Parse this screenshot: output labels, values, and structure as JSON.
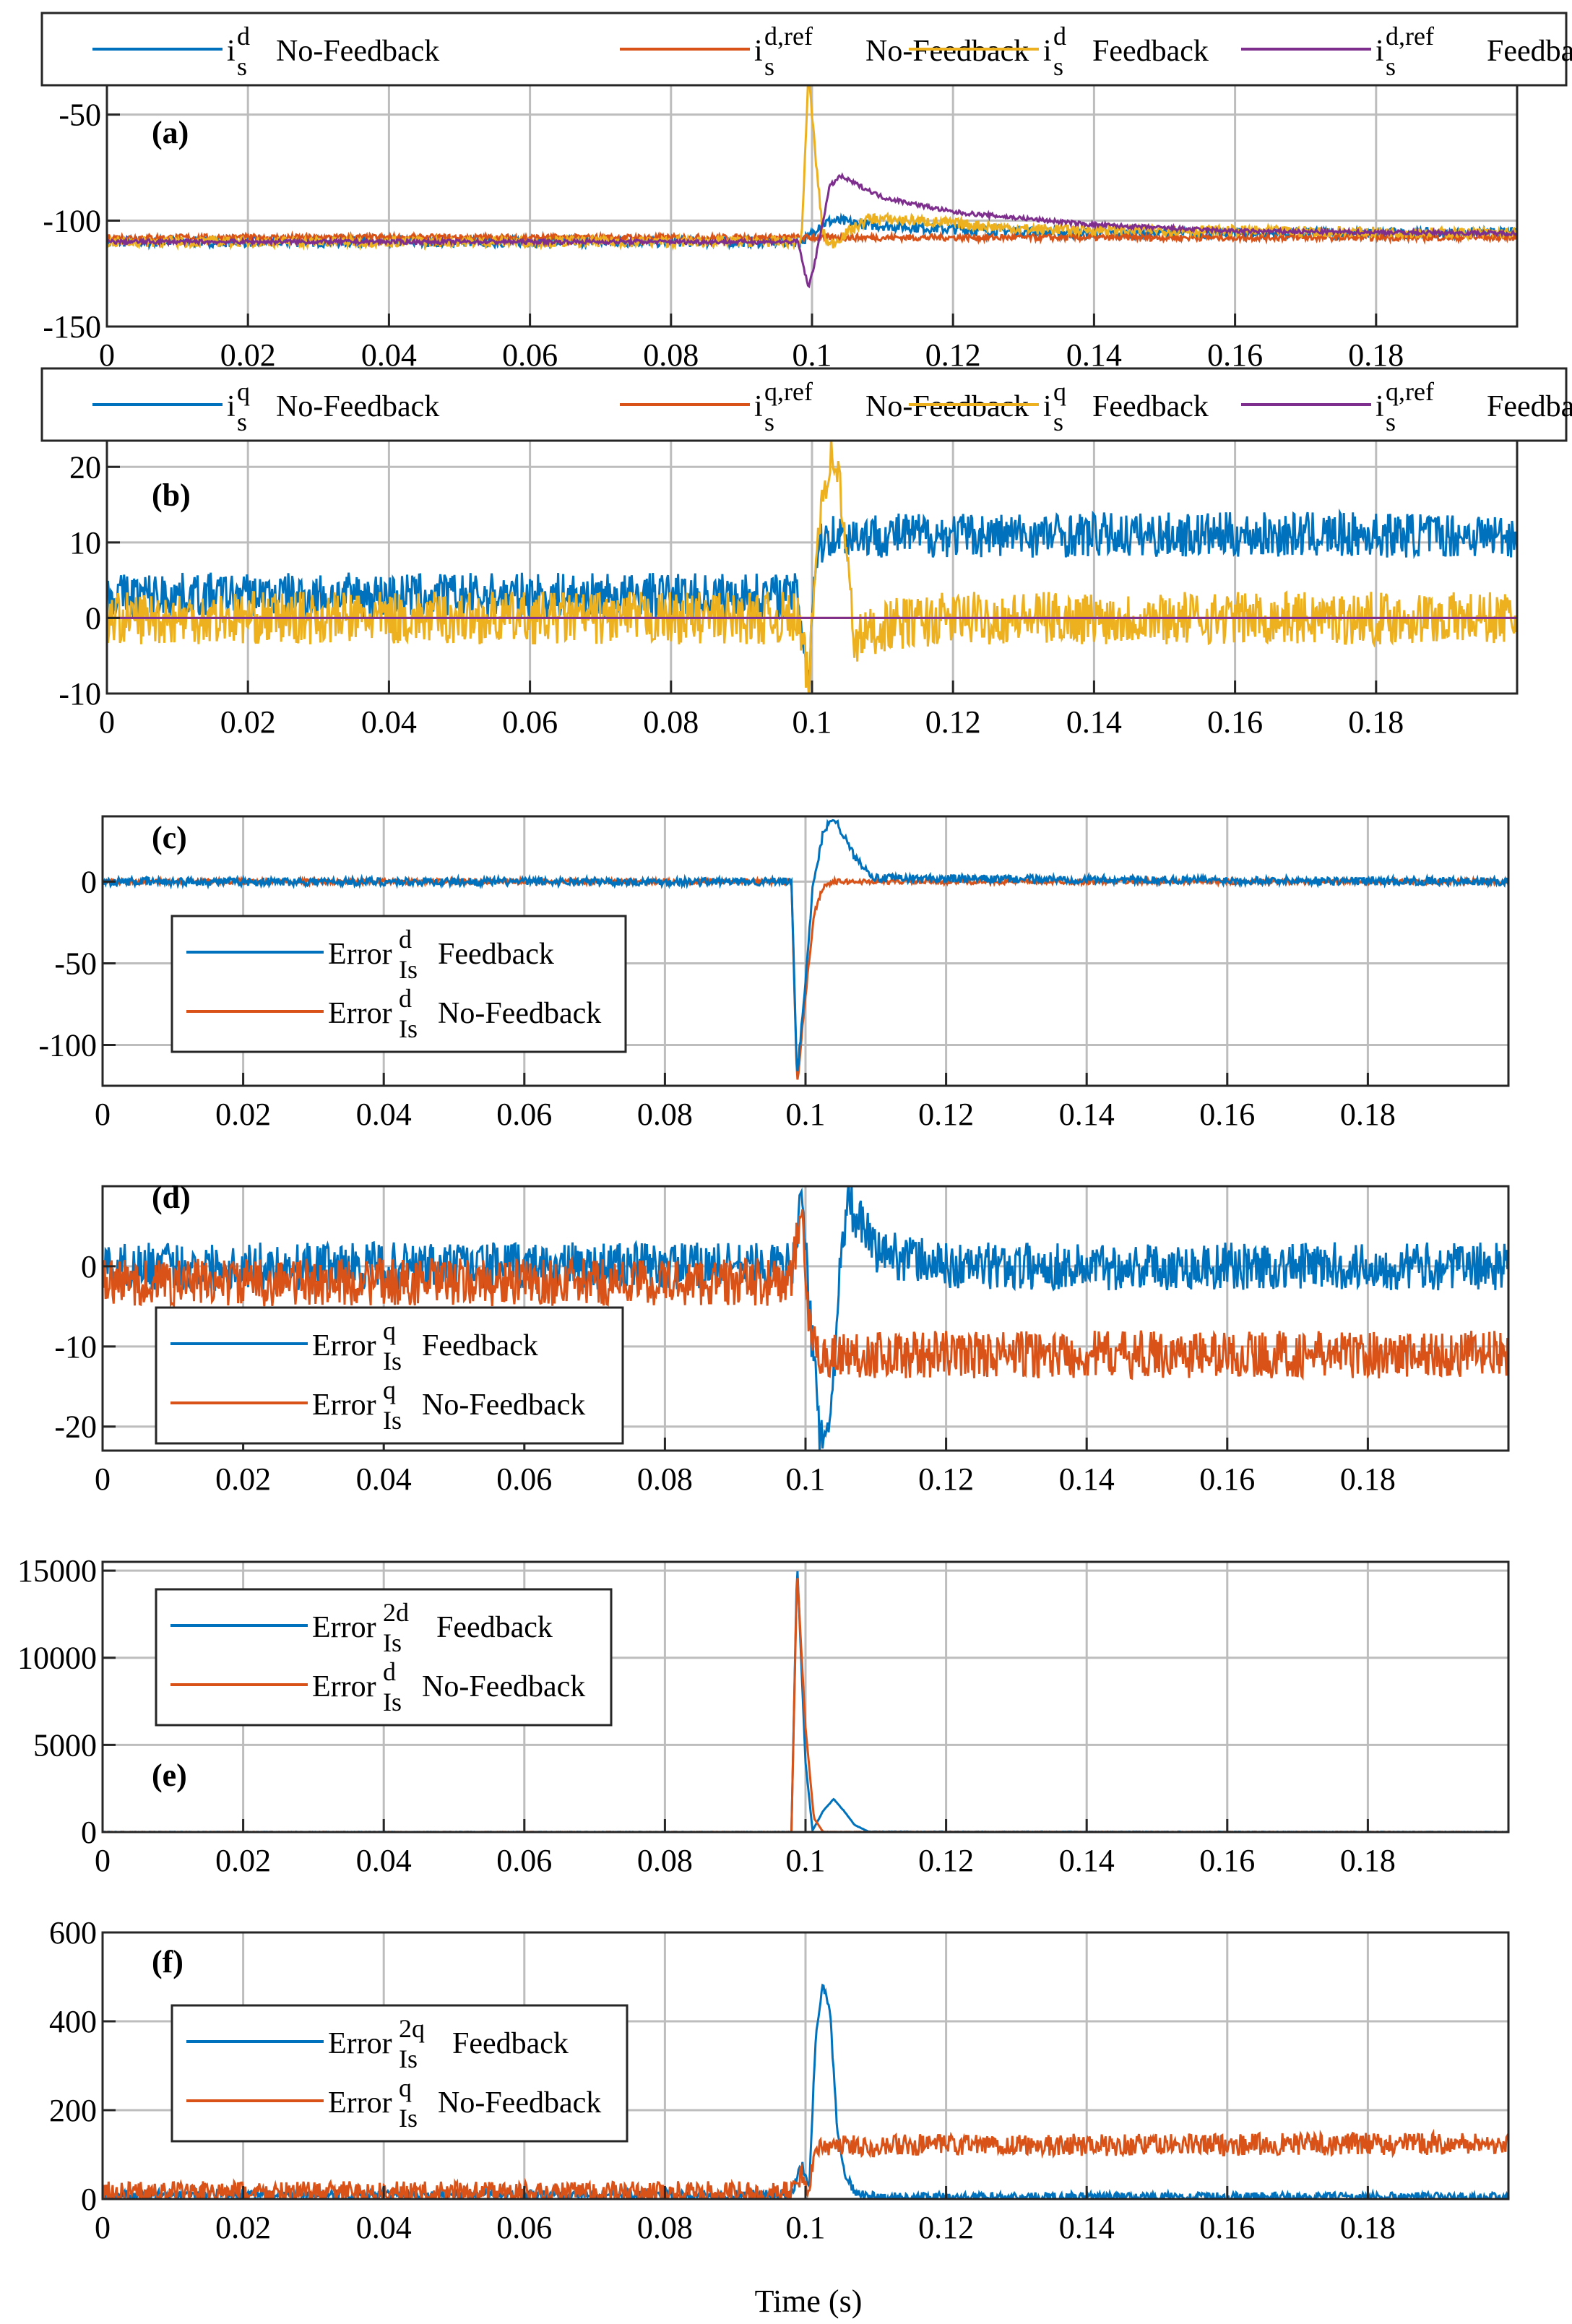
{
  "xlabel": "Time (s)",
  "colors": {
    "blue": "#0072BD",
    "orange": "#D95319",
    "yellow": "#EDB120",
    "purple": "#7E2F8E",
    "grid": "#bdbdbd"
  },
  "chart_data": [
    {
      "type": "line",
      "panel_label": "(a)",
      "xlim": [
        0,
        0.2
      ],
      "ylim": [
        -150,
        -30
      ],
      "xticks": [
        "0",
        "0.02",
        "0.04",
        "0.06",
        "0.08",
        "0.1",
        "0.12",
        "0.14",
        "0.16",
        "0.18"
      ],
      "xtick_values": [
        0,
        0.02,
        0.04,
        0.06,
        0.08,
        0.1,
        0.12,
        0.14,
        0.16,
        0.18
      ],
      "yticks": [
        "-50",
        "-100",
        "-150"
      ],
      "ytick_values": [
        -50,
        -100,
        -150
      ],
      "legend_style": "top",
      "legend": [
        {
          "base": "i",
          "sup": "d",
          "sub": "s",
          "text": "No-Feedback",
          "color": "blue"
        },
        {
          "base": "i",
          "sup": "d,ref",
          "sub": "s",
          "text": "No-Feedback",
          "color": "orange"
        },
        {
          "base": "i",
          "sup": "d",
          "sub": "s",
          "text": "Feedback",
          "color": "yellow"
        },
        {
          "base": "i",
          "sup": "d,ref",
          "sub": "s",
          "text": "Feedback",
          "color": "purple"
        }
      ],
      "series": [
        {
          "name": "i_s^d No-Feedback",
          "color": "blue",
          "x": [
            0,
            0.098,
            0.0995,
            0.101,
            0.103,
            0.108,
            0.12,
            0.14,
            0.2
          ],
          "y": [
            -110,
            -110,
            -108,
            -102,
            -100,
            -102,
            -104,
            -106,
            -106
          ],
          "noise": 2.5
        },
        {
          "name": "i_s^d,ref No-Feedback",
          "color": "orange",
          "x": [
            0,
            0.2
          ],
          "y": [
            -108,
            -108
          ],
          "noise": 1.5
        },
        {
          "name": "i_s^d Feedback",
          "color": "yellow",
          "x": [
            0,
            0.0985,
            0.0995,
            0.1005,
            0.1015,
            0.1025,
            0.104,
            0.108,
            0.115,
            0.13,
            0.2
          ],
          "y": [
            -110,
            -110,
            -30,
            -70,
            -105,
            -112,
            -108,
            -99,
            -100,
            -104,
            -106
          ],
          "noise": 2.5
        },
        {
          "name": "i_s^d,ref Feedback",
          "color": "purple",
          "x": [
            0,
            0.098,
            0.0995,
            0.1005,
            0.1025,
            0.104,
            0.11,
            0.12,
            0.14,
            0.16,
            0.2
          ],
          "y": [
            -110,
            -110,
            -132,
            -118,
            -84,
            -79,
            -89,
            -96,
            -102,
            -105,
            -106
          ],
          "noise": 1
        }
      ]
    },
    {
      "type": "line",
      "panel_label": "(b)",
      "xlim": [
        0,
        0.2
      ],
      "ylim": [
        -10,
        25
      ],
      "xticks": [
        "0",
        "0.02",
        "0.04",
        "0.06",
        "0.08",
        "0.1",
        "0.12",
        "0.14",
        "0.16",
        "0.18"
      ],
      "xtick_values": [
        0,
        0.02,
        0.04,
        0.06,
        0.08,
        0.1,
        0.12,
        0.14,
        0.16,
        0.18
      ],
      "yticks": [
        "20",
        "10",
        "0",
        "-10"
      ],
      "ytick_values": [
        20,
        10,
        0,
        -10
      ],
      "legend_style": "top",
      "legend": [
        {
          "base": "i",
          "sup": "q",
          "sub": "s",
          "text": "No-Feedback",
          "color": "blue"
        },
        {
          "base": "i",
          "sup": "q,ref",
          "sub": "s",
          "text": "No-Feedback",
          "color": "orange"
        },
        {
          "base": "i",
          "sup": "q",
          "sub": "s",
          "text": "Feedback",
          "color": "yellow"
        },
        {
          "base": "i",
          "sup": "q,ref",
          "sub": "s",
          "text": "Feedback",
          "color": "purple"
        }
      ],
      "series": [
        {
          "name": "i_s^q No-Feedback",
          "color": "blue",
          "x": [
            0,
            0.098,
            0.0995,
            0.1005,
            0.102,
            0.2
          ],
          "y": [
            3,
            3,
            -8,
            8,
            11,
            11
          ],
          "noise": 3
        },
        {
          "name": "i_s^q,ref No-Feedback",
          "color": "orange",
          "x": [
            0,
            0.2
          ],
          "y": [
            0,
            0
          ],
          "noise": 0
        },
        {
          "name": "i_s^q Feedback",
          "color": "yellow",
          "x": [
            0,
            0.098,
            0.0995,
            0.101,
            0.1025,
            0.1035,
            0.1045,
            0.106,
            0.11,
            0.12,
            0.2
          ],
          "y": [
            0,
            0,
            -9,
            14,
            21,
            21,
            12,
            -3,
            -1,
            0,
            0
          ],
          "noise": 3.5
        },
        {
          "name": "i_s^q,ref Feedback",
          "color": "purple",
          "x": [
            0,
            0.2
          ],
          "y": [
            0,
            0
          ],
          "noise": 0
        }
      ]
    },
    {
      "type": "line",
      "panel_label": "(c)",
      "xlim": [
        0,
        0.2
      ],
      "ylim": [
        -125,
        40
      ],
      "xticks": [
        "0",
        "0.02",
        "0.04",
        "0.06",
        "0.08",
        "0.1",
        "0.12",
        "0.14",
        "0.16",
        "0.18"
      ],
      "xtick_values": [
        0,
        0.02,
        0.04,
        0.06,
        0.08,
        0.1,
        0.12,
        0.14,
        0.16,
        0.18
      ],
      "yticks": [
        "0",
        "-50",
        "-100"
      ],
      "ytick_values": [
        0,
        -50,
        -100
      ],
      "legend_style": "inset",
      "legend": [
        {
          "base": "Error",
          "sup": "d",
          "sub": "Is",
          "text": "Feedback",
          "color": "blue"
        },
        {
          "base": "Error",
          "sup": "d",
          "sub": "Is",
          "text": "No-Feedback",
          "color": "orange"
        }
      ],
      "series": [
        {
          "name": "Error_Is^d No-Feedback",
          "color": "orange",
          "x": [
            0,
            0.098,
            0.0988,
            0.1,
            0.1012,
            0.1025,
            0.104,
            0.2
          ],
          "y": [
            0,
            0,
            -125,
            -70,
            -20,
            -3,
            0,
            0
          ],
          "noise": 1.5
        },
        {
          "name": "Error_Is^d Feedback",
          "color": "blue",
          "x": [
            0,
            0.098,
            0.0988,
            0.1,
            0.101,
            0.1025,
            0.104,
            0.107,
            0.11,
            0.2
          ],
          "y": [
            0,
            0,
            -120,
            -60,
            -5,
            30,
            40,
            15,
            2,
            0
          ],
          "noise": 2.5
        }
      ]
    },
    {
      "type": "line",
      "panel_label": "(d)",
      "xlim": [
        0,
        0.2
      ],
      "ylim": [
        -23,
        10
      ],
      "xticks": [
        "0",
        "0.02",
        "0.04",
        "0.06",
        "0.08",
        "0.1",
        "0.12",
        "0.14",
        "0.16",
        "0.18"
      ],
      "xtick_values": [
        0,
        0.02,
        0.04,
        0.06,
        0.08,
        0.1,
        0.12,
        0.14,
        0.16,
        0.18
      ],
      "yticks": [
        "0",
        "-10",
        "-20"
      ],
      "ytick_values": [
        0,
        -10,
        -20
      ],
      "legend_style": "inset",
      "legend": [
        {
          "base": "Error",
          "sup": "q",
          "sub": "Is",
          "text": "Feedback",
          "color": "blue"
        },
        {
          "base": "Error",
          "sup": "q",
          "sub": "Is",
          "text": "No-Feedback",
          "color": "orange"
        }
      ],
      "series": [
        {
          "name": "Error_Is^q Feedback",
          "color": "blue",
          "x": [
            0,
            0.098,
            0.0995,
            0.1005,
            0.102,
            0.1035,
            0.1045,
            0.106,
            0.11,
            0.12,
            0.2
          ],
          "y": [
            0,
            0,
            9,
            -5,
            -20,
            -21,
            -5,
            8,
            2,
            0,
            0
          ],
          "noise": 3
        },
        {
          "name": "Error_Is^q No-Feedback",
          "color": "orange",
          "x": [
            0,
            0.098,
            0.0995,
            0.1005,
            0.1015,
            0.2
          ],
          "y": [
            -2,
            -2,
            8,
            -8,
            -11,
            -11
          ],
          "noise": 3
        }
      ]
    },
    {
      "type": "line",
      "panel_label": "(e)",
      "xlim": [
        0,
        0.2
      ],
      "ylim": [
        0,
        15500
      ],
      "xticks": [
        "0",
        "0.02",
        "0.04",
        "0.06",
        "0.08",
        "0.1",
        "0.12",
        "0.14",
        "0.16",
        "0.18"
      ],
      "xtick_values": [
        0,
        0.02,
        0.04,
        0.06,
        0.08,
        0.1,
        0.12,
        0.14,
        0.16,
        0.18
      ],
      "yticks": [
        "15000",
        "10000",
        "5000",
        "0"
      ],
      "ytick_values": [
        15000,
        10000,
        5000,
        0
      ],
      "legend_style": "inset",
      "legend": [
        {
          "base": "Error",
          "sup": "2d",
          "sub": "Is",
          "text": "Feedback",
          "color": "blue"
        },
        {
          "base": "Error",
          "sup": "d",
          "sub": "Is",
          "text": "No-Feedback",
          "color": "orange"
        }
      ],
      "series": [
        {
          "name": "Error^2d_Is Feedback",
          "color": "blue",
          "x": [
            0,
            0.098,
            0.0988,
            0.1,
            0.101,
            0.1025,
            0.104,
            0.1055,
            0.107,
            0.109,
            0.2
          ],
          "y": [
            0,
            0,
            15500,
            4000,
            100,
            1200,
            1900,
            1200,
            400,
            20,
            0
          ],
          "noise": 15
        },
        {
          "name": "Error_Is^d No-Feedback",
          "color": "orange",
          "x": [
            0,
            0.098,
            0.0988,
            0.1,
            0.1012,
            0.1025,
            0.2
          ],
          "y": [
            0,
            0,
            15000,
            6000,
            800,
            10,
            0
          ],
          "noise": 10
        }
      ]
    },
    {
      "type": "line",
      "panel_label": "(f)",
      "xlim": [
        0,
        0.2
      ],
      "ylim": [
        0,
        600
      ],
      "xticks": [
        "0",
        "0.02",
        "0.04",
        "0.06",
        "0.08",
        "0.1",
        "0.12",
        "0.14",
        "0.16",
        "0.18"
      ],
      "xtick_values": [
        0,
        0.02,
        0.04,
        0.06,
        0.08,
        0.1,
        0.12,
        0.14,
        0.16,
        0.18
      ],
      "yticks": [
        "600",
        "400",
        "200",
        "0"
      ],
      "ytick_values": [
        600,
        400,
        200,
        0
      ],
      "legend_style": "inset",
      "legend": [
        {
          "base": "Error",
          "sup": "2q",
          "sub": "Is",
          "text": "Feedback",
          "color": "blue"
        },
        {
          "base": "Error",
          "sup": "q",
          "sub": "Is",
          "text": "No-Feedback",
          "color": "orange"
        }
      ],
      "series": [
        {
          "name": "Error^2q_Is Feedback",
          "color": "blue",
          "x": [
            0,
            0.098,
            0.0995,
            0.1005,
            0.1015,
            0.1025,
            0.1035,
            0.1045,
            0.1055,
            0.107,
            0.11,
            0.2
          ],
          "y": [
            10,
            10,
            80,
            20,
            380,
            480,
            420,
            160,
            60,
            15,
            5,
            5
          ],
          "noise": 10
        },
        {
          "name": "Error_Is^q No-Feedback",
          "color": "orange",
          "x": [
            0,
            0.098,
            0.0995,
            0.1005,
            0.1015,
            0.2
          ],
          "y": [
            15,
            15,
            60,
            20,
            120,
            125
          ],
          "noise": 25
        }
      ]
    }
  ]
}
